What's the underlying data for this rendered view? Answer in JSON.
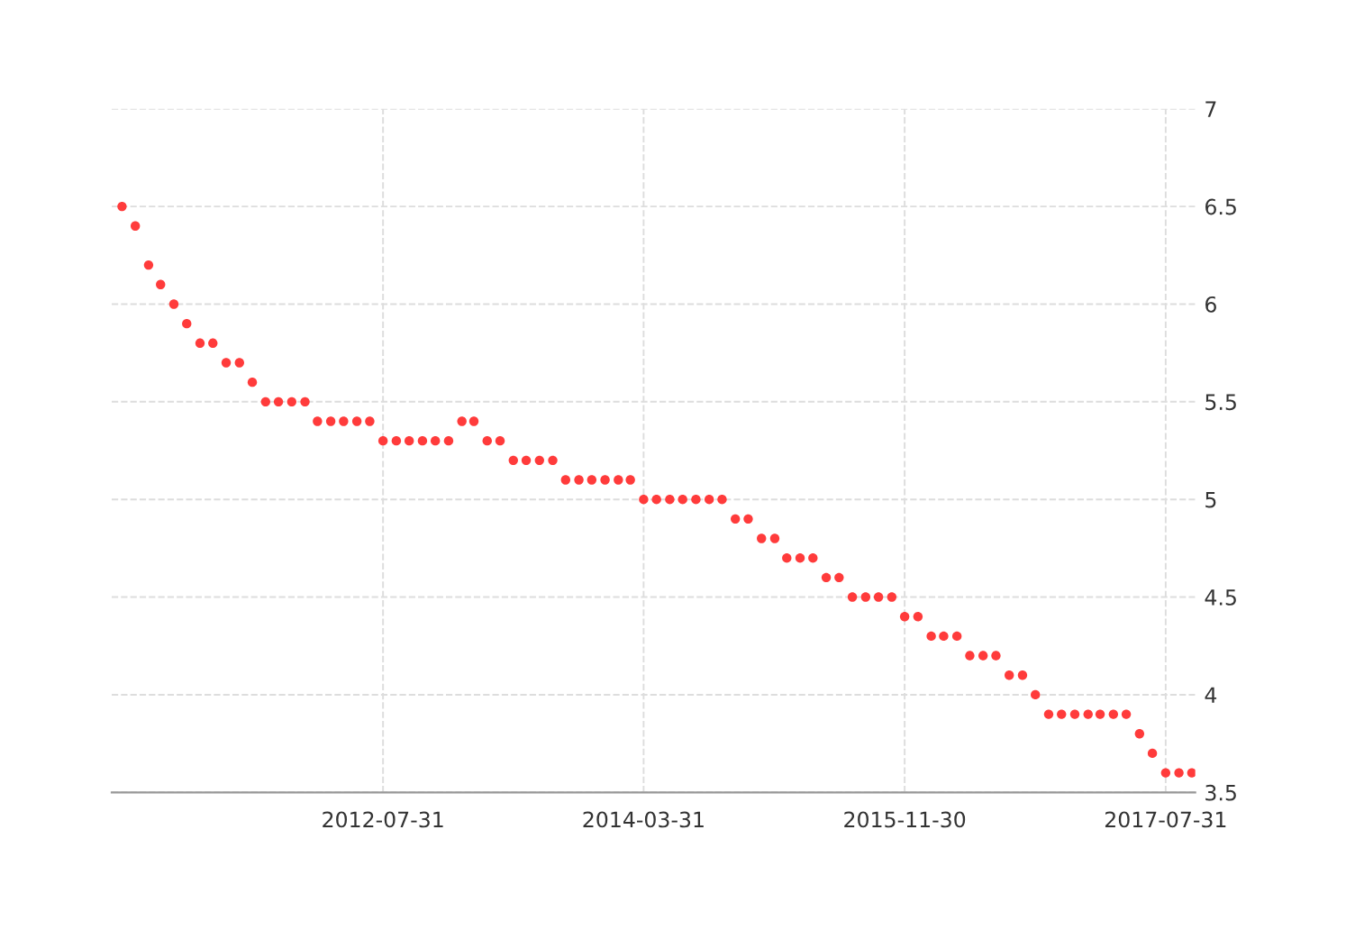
{
  "chart_data": {
    "type": "scatter",
    "x": [
      "2010-11-30",
      "2010-12-31",
      "2011-01-31",
      "2011-02-28",
      "2011-03-31",
      "2011-04-30",
      "2011-05-31",
      "2011-06-30",
      "2011-07-31",
      "2011-08-31",
      "2011-09-30",
      "2011-10-31",
      "2011-11-30",
      "2011-12-31",
      "2012-01-31",
      "2012-02-29",
      "2012-03-31",
      "2012-04-30",
      "2012-05-31",
      "2012-06-30",
      "2012-07-31",
      "2012-08-31",
      "2012-09-30",
      "2012-10-31",
      "2012-11-30",
      "2012-12-31",
      "2013-01-31",
      "2013-02-28",
      "2013-03-31",
      "2013-04-30",
      "2013-05-31",
      "2013-06-30",
      "2013-07-31",
      "2013-08-31",
      "2013-09-30",
      "2013-10-31",
      "2013-11-30",
      "2013-12-31",
      "2014-01-31",
      "2014-02-28",
      "2014-03-31",
      "2014-04-30",
      "2014-05-31",
      "2014-06-30",
      "2014-07-31",
      "2014-08-31",
      "2014-09-30",
      "2014-10-31",
      "2014-11-30",
      "2014-12-31",
      "2015-01-31",
      "2015-02-28",
      "2015-03-31",
      "2015-04-30",
      "2015-05-31",
      "2015-06-30",
      "2015-07-31",
      "2015-08-31",
      "2015-09-30",
      "2015-10-31",
      "2015-11-30",
      "2015-12-31",
      "2016-01-31",
      "2016-02-29",
      "2016-03-31",
      "2016-04-30",
      "2016-05-31",
      "2016-06-30",
      "2016-07-31",
      "2016-08-31",
      "2016-09-30",
      "2016-10-31",
      "2016-11-30",
      "2016-12-31",
      "2017-01-31",
      "2017-02-28",
      "2017-03-31",
      "2017-04-30",
      "2017-05-31",
      "2017-06-30",
      "2017-07-31",
      "2017-08-31",
      "2017-09-30"
    ],
    "values": [
      6.5,
      6.4,
      6.2,
      6.1,
      6.0,
      5.9,
      5.8,
      5.8,
      5.7,
      5.7,
      5.6,
      5.5,
      5.5,
      5.5,
      5.5,
      5.4,
      5.4,
      5.4,
      5.4,
      5.4,
      5.3,
      5.3,
      5.3,
      5.3,
      5.3,
      5.3,
      5.4,
      5.4,
      5.3,
      5.3,
      5.2,
      5.2,
      5.2,
      5.2,
      5.1,
      5.1,
      5.1,
      5.1,
      5.1,
      5.1,
      5.0,
      5.0,
      5.0,
      5.0,
      5.0,
      5.0,
      5.0,
      4.9,
      4.9,
      4.8,
      4.8,
      4.7,
      4.7,
      4.7,
      4.6,
      4.6,
      4.5,
      4.5,
      4.5,
      4.5,
      4.4,
      4.4,
      4.3,
      4.3,
      4.3,
      4.2,
      4.2,
      4.2,
      4.1,
      4.1,
      4.0,
      3.9,
      3.9,
      3.9,
      3.9,
      3.9,
      3.9,
      3.9,
      3.8,
      3.7,
      3.6,
      3.6,
      3.6
    ],
    "color": "#ff3b3b",
    "marker": "circle",
    "xlim": [
      "2010-11-06",
      "2017-10-08"
    ],
    "xticks": [
      "2012-07-31",
      "2014-03-31",
      "2015-11-30",
      "2017-07-31"
    ],
    "ylim": [
      3.5,
      7
    ],
    "yticks": [
      3.5,
      4,
      4.5,
      5,
      5.5,
      6,
      6.5,
      7
    ],
    "grid": true
  }
}
